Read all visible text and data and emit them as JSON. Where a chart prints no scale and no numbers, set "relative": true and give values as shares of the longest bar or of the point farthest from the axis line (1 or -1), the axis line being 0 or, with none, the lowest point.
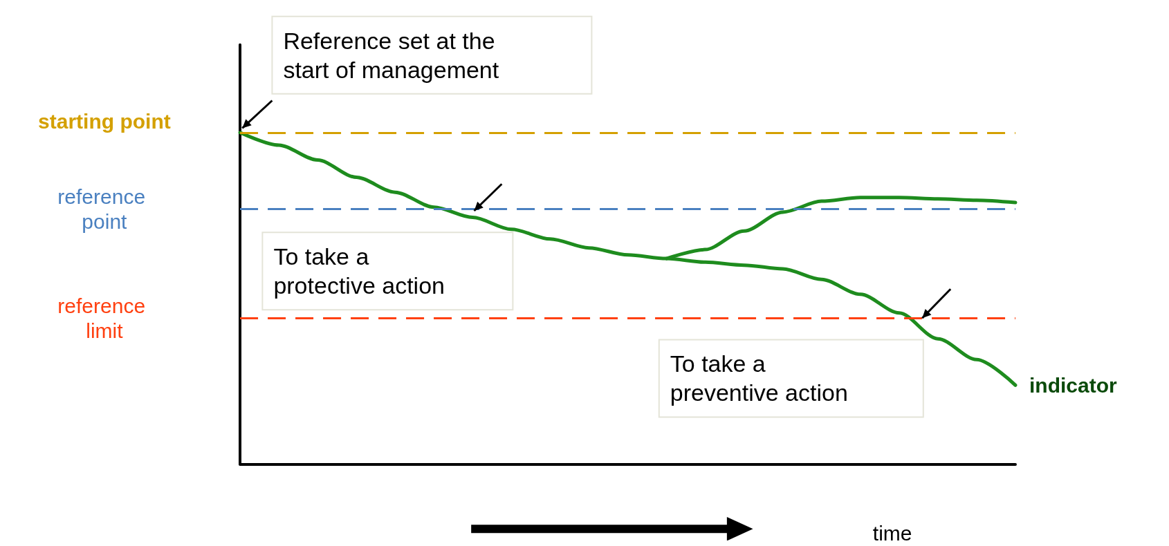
{
  "chart_data": {
    "type": "line",
    "relative": true,
    "xlabel": "time",
    "categories": [
      null,
      null,
      null,
      null,
      null,
      null,
      null,
      null,
      null,
      null,
      null,
      null,
      null,
      null,
      null,
      null,
      null,
      null,
      null,
      null,
      null
    ],
    "series": [
      {
        "name": "indicator",
        "color": "#1e8c1e",
        "values": [
          1.0,
          0.962,
          0.917,
          0.865,
          0.82,
          0.775,
          0.744,
          0.708,
          0.679,
          0.652,
          0.631,
          0.62,
          0.609,
          0.6,
          0.589,
          0.557,
          0.512,
          0.456,
          0.378,
          0.315,
          0.238
        ]
      },
      {
        "color": "#1e8c1e",
        "values": [
          null,
          null,
          null,
          null,
          null,
          null,
          null,
          null,
          null,
          null,
          null,
          0.62,
          0.647,
          0.703,
          0.76,
          0.793,
          0.804,
          0.804,
          0.8,
          0.796,
          0.789
        ]
      }
    ],
    "ref_lines": [
      {
        "axis": "y",
        "value": 1.0,
        "label": "starting point",
        "color": "#d4a000",
        "line_style": "dashed"
      },
      {
        "axis": "y",
        "value": 0.77,
        "label": "reference point",
        "color": "#4a80c0",
        "line_style": "dashed"
      },
      {
        "axis": "y",
        "value": 0.44,
        "label": "reference limit",
        "color": "#ff4010",
        "line_style": "dashed"
      }
    ],
    "annotations": [
      "Reference set at the start of management",
      "To take a protective action",
      "To take a preventive action"
    ],
    "marker": "none",
    "line_style": "solid"
  }
}
